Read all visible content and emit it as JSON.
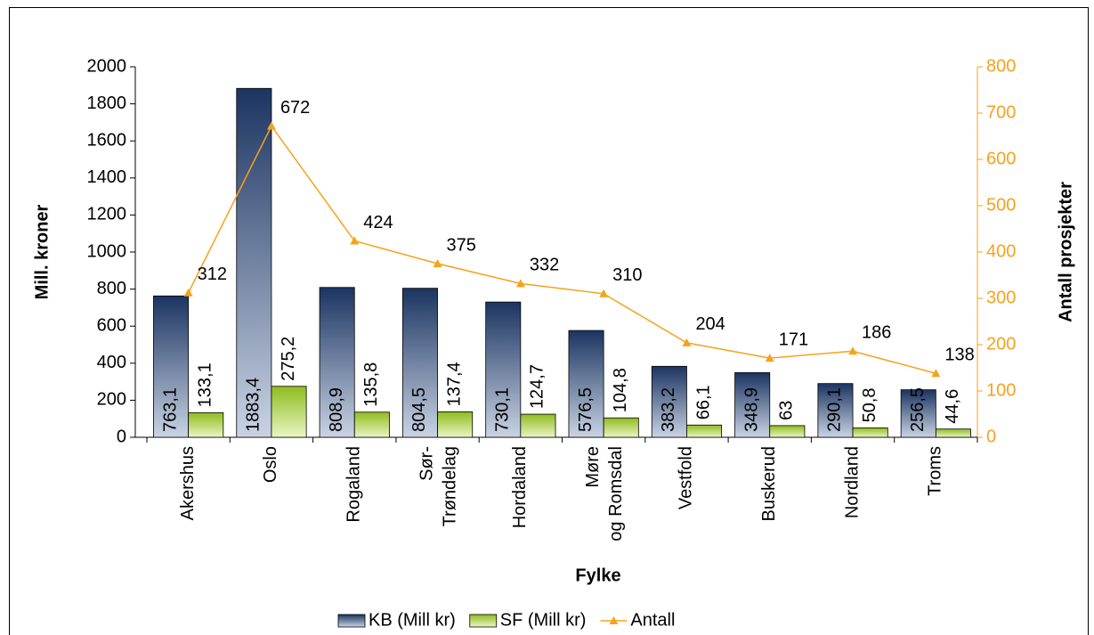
{
  "chart_data": {
    "type": "bar",
    "xlabel": "Fylke",
    "ylabel": "Mill. kroner",
    "y2label": "Antall prosjekter",
    "categories": [
      "Akershus",
      "Oslo",
      "Rogaland",
      "Sør-Trøndelag",
      "Hordaland",
      "Møre og Romsdal",
      "Vestfold",
      "Buskerud",
      "Nordland",
      "Troms"
    ],
    "series": [
      {
        "name": "KB (Mill kr)",
        "color": "#1b3461",
        "values": [
          763.1,
          1883.4,
          808.9,
          804.5,
          730.1,
          576.5,
          383.2,
          348.9,
          290.1,
          256.5
        ],
        "value_labels": [
          "763,1",
          "1883,4",
          "808,9",
          "804,5",
          "730,1",
          "576,5",
          "383,2",
          "348,9",
          "290,1",
          "256,5"
        ]
      },
      {
        "name": "SF (Mill kr)",
        "color": "#8fbc1e",
        "values": [
          133.1,
          275.2,
          135.8,
          137.4,
          124.7,
          104.8,
          66.1,
          63,
          50.8,
          44.6
        ],
        "value_labels": [
          "133,1",
          "275,2",
          "135,8",
          "137,4",
          "124,7",
          "104,8",
          "66,1",
          "63",
          "50,8",
          "44,6"
        ]
      },
      {
        "name": "Antall",
        "type": "line",
        "axis": "y2",
        "color": "#f7a21b",
        "values": [
          312,
          672,
          424,
          375,
          332,
          310,
          204,
          171,
          186,
          138
        ]
      }
    ],
    "ylim": [
      0,
      2000
    ],
    "yticks": [
      0,
      200,
      400,
      600,
      800,
      1000,
      1200,
      1400,
      1600,
      1800,
      2000
    ],
    "y2lim": [
      0,
      800
    ],
    "y2ticks": [
      0,
      100,
      200,
      300,
      400,
      500,
      600,
      700,
      800
    ],
    "legend": "bottom"
  }
}
